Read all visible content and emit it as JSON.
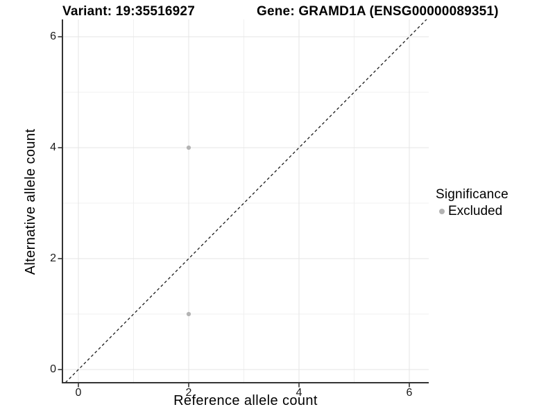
{
  "chart_data": {
    "type": "scatter",
    "titles": {
      "left": "Variant: 19:35516927",
      "right": "Gene: GRAMD1A (ENSG00000089351)"
    },
    "xlabel": "Reference allele count",
    "ylabel": "Alternative allele count",
    "xlim": [
      -0.3,
      6.35
    ],
    "ylim": [
      -0.25,
      6.3
    ],
    "x_ticks": [
      0,
      2,
      4,
      6
    ],
    "y_ticks": [
      0,
      2,
      4,
      6
    ],
    "x_minor_ticks": [
      1,
      3,
      5
    ],
    "y_minor_ticks": [
      1,
      3,
      5
    ],
    "grid": "major+minor",
    "points": [
      {
        "x": 2,
        "y": 4,
        "significance": "Excluded"
      },
      {
        "x": 2,
        "y": 1,
        "significance": "Excluded"
      }
    ],
    "identity_line": {
      "style": "dashed",
      "color": "#1a1a1a",
      "from": [
        -0.3,
        -0.3
      ],
      "to": [
        6.35,
        6.35
      ]
    },
    "legend": {
      "title": "Significance",
      "position": "right",
      "entries": [
        {
          "label": "Excluded",
          "color": "#b3b3b3"
        }
      ]
    },
    "colors": {
      "point": "#b3b3b3",
      "grid_major": "#e4e4e4",
      "grid_minor": "#f0f0f0",
      "axis": "#333333"
    }
  }
}
